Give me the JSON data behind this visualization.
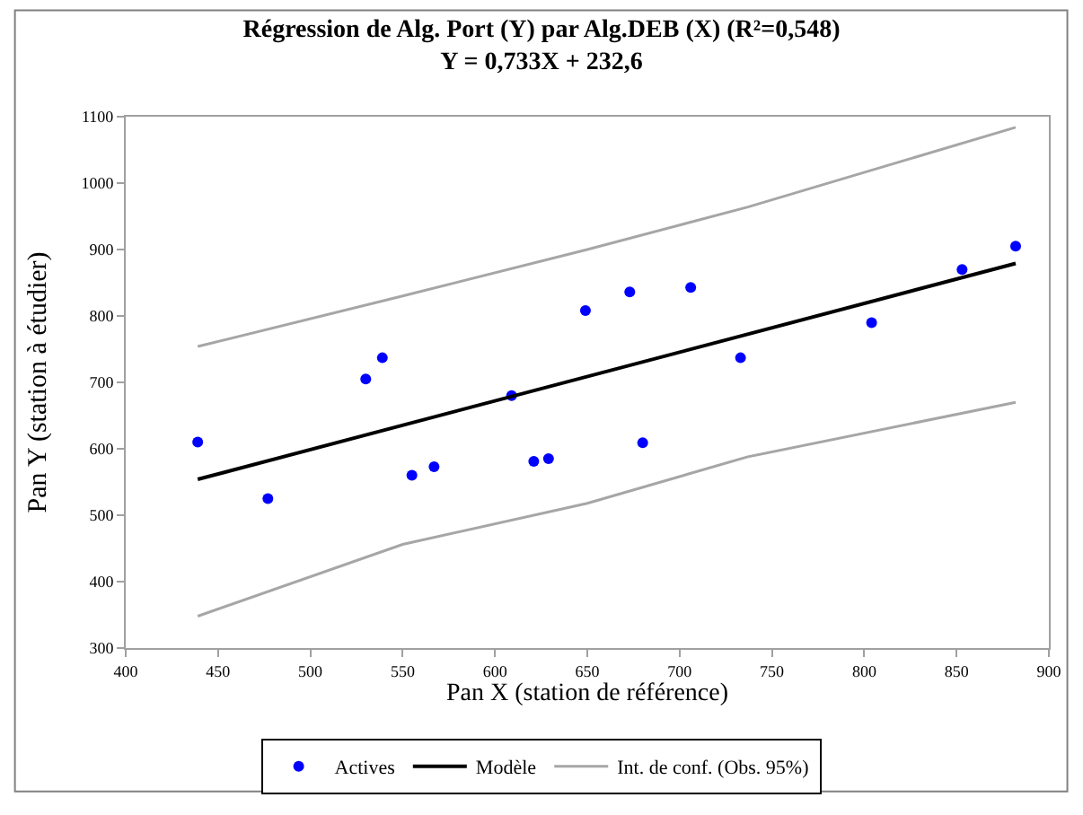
{
  "chart_data": {
    "type": "scatter",
    "title": "Régression de Alg. Port (Y) par Alg.DEB (X) (R²=0,548)",
    "subtitle": "Y = 0,733X + 232,6",
    "xlabel": "Pan X (station de référence)",
    "ylabel": "Pan Y (station à étudier)",
    "xlim": [
      400,
      900
    ],
    "xticks": [
      400,
      450,
      500,
      550,
      600,
      650,
      700,
      750,
      800,
      850,
      900
    ],
    "ylim": [
      300,
      1100
    ],
    "yticks": [
      300,
      400,
      500,
      600,
      700,
      800,
      900,
      1000,
      1100
    ],
    "legend": "bottom",
    "series": [
      {
        "name": "Actives",
        "marker": "circle",
        "color": "#0000ff",
        "x": [
          439,
          477,
          530,
          539,
          555,
          567,
          609,
          621,
          629,
          649,
          673,
          680,
          706,
          733,
          804,
          853,
          882
        ],
        "values": [
          610,
          525,
          705,
          737,
          560,
          573,
          680,
          581,
          585,
          808,
          836,
          609,
          843,
          737,
          790,
          870,
          905
        ]
      },
      {
        "name": "Modèle",
        "type": "line",
        "marker": "none",
        "color": "#000000",
        "x": [
          439,
          882
        ],
        "values": [
          554,
          879
        ]
      },
      {
        "name": "Int. de conf. (Obs. 95%)",
        "type": "line",
        "marker": "none",
        "color": "#a6a6a6",
        "x": [
          439,
          550,
          650,
          737,
          882
        ],
        "values": [
          754,
          830,
          900,
          964,
          1084
        ]
      },
      {
        "type": "line",
        "marker": "none",
        "color": "#a6a6a6",
        "x": [
          439,
          550,
          650,
          737,
          882
        ],
        "values": [
          348,
          456,
          518,
          588,
          670
        ]
      }
    ]
  }
}
